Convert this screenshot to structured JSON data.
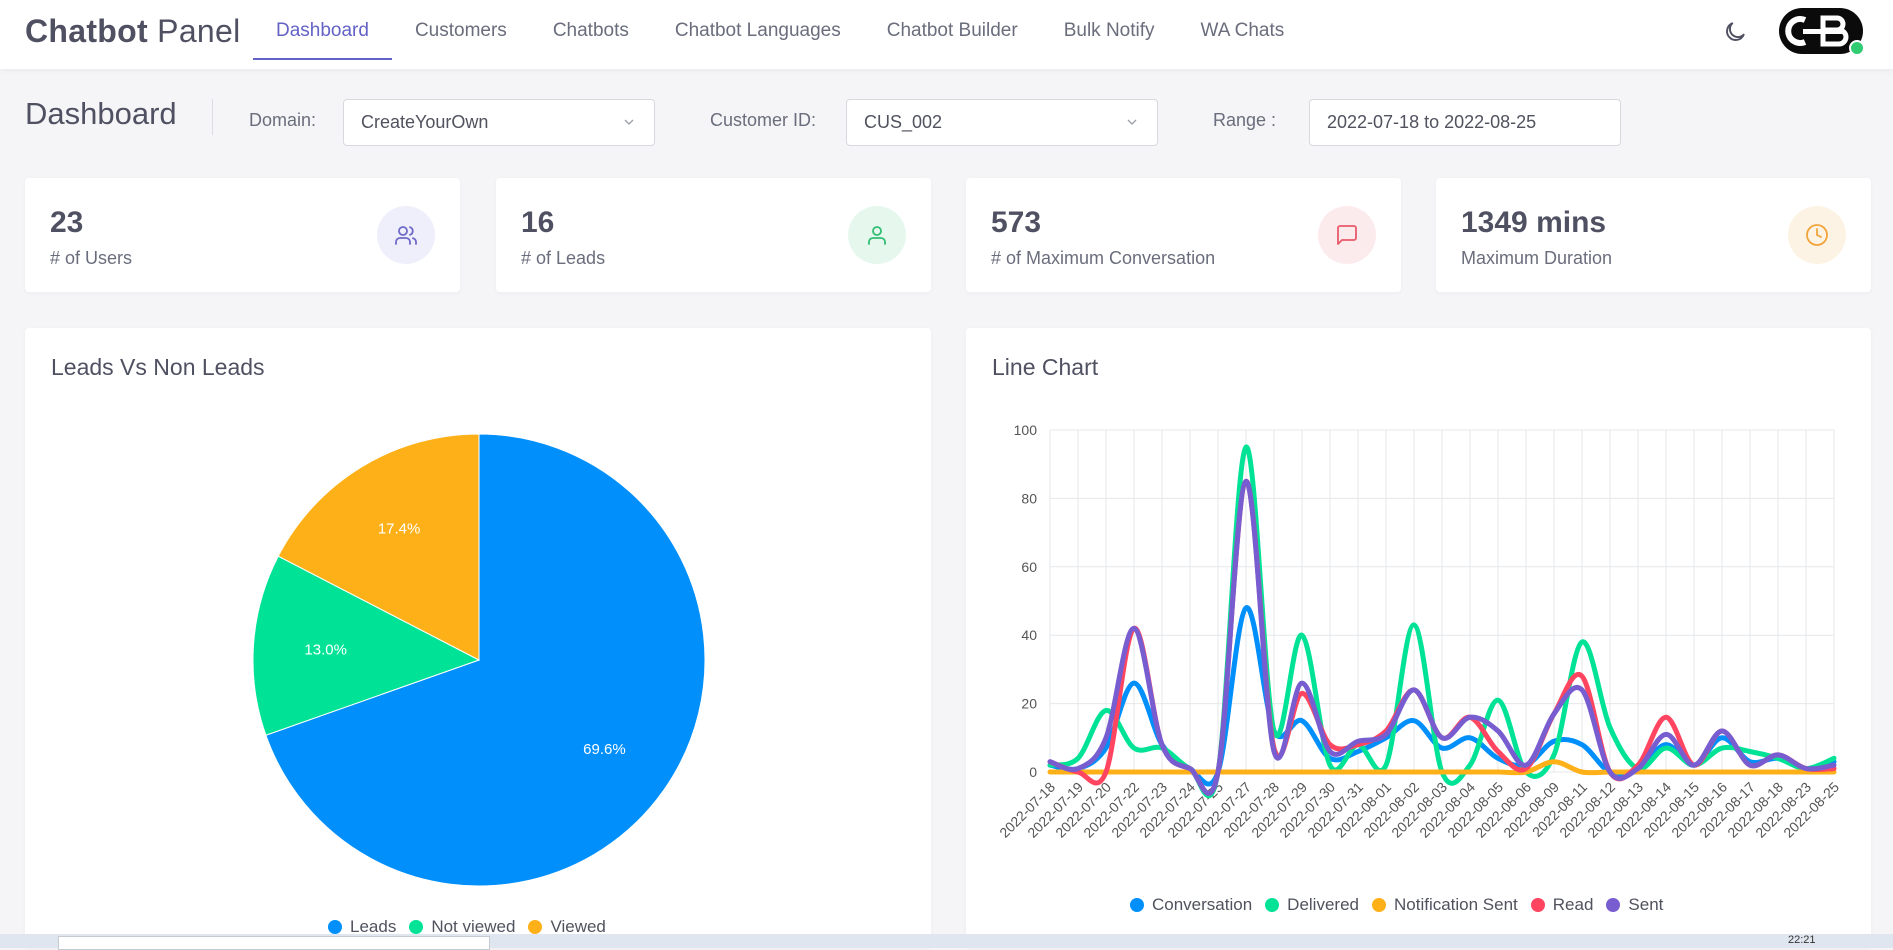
{
  "brand": {
    "bold": "Chatbot",
    "rest": "Panel"
  },
  "nav": [
    {
      "label": "Dashboard",
      "active": true
    },
    {
      "label": "Customers"
    },
    {
      "label": "Chatbots"
    },
    {
      "label": "Chatbot Languages"
    },
    {
      "label": "Chatbot Builder"
    },
    {
      "label": "Bulk Notify"
    },
    {
      "label": "WA Chats"
    }
  ],
  "header_icons": {
    "theme": "moon-icon",
    "avatar": "logo-avatar"
  },
  "page_title": "Dashboard",
  "filters": {
    "domain_label": "Domain:",
    "domain_value": "CreateYourOwn",
    "customer_label": "Customer ID:",
    "customer_value": "CUS_002",
    "range_label": "Range :",
    "range_value": "2022-07-18 to 2022-08-25"
  },
  "stats": [
    {
      "value": "23",
      "label": "# of Users",
      "icon": "users-icon",
      "color": "#6e68c8",
      "bg": "#efeefb"
    },
    {
      "value": "16",
      "label": "# of Leads",
      "icon": "user-icon",
      "color": "#2fbf71",
      "bg": "#e6f7ee"
    },
    {
      "value": "573",
      "label": "# of Maximum Conversation",
      "icon": "message-icon",
      "color": "#e85b6b",
      "bg": "#fcebed"
    },
    {
      "value": "1349 mins",
      "label": "Maximum Duration",
      "icon": "clock-icon",
      "color": "#f2a43a",
      "bg": "#fdf3e5"
    }
  ],
  "pie": {
    "title": "Leads Vs Non Leads",
    "chart_data": {
      "type": "pie",
      "labels": [
        "Leads",
        "Not viewed",
        "Viewed"
      ],
      "values": [
        69.6,
        13.0,
        17.4
      ],
      "value_labels": [
        "69.6%",
        "13.0%",
        "17.4%"
      ],
      "colors": [
        "#008ffb",
        "#00e396",
        "#feb019"
      ],
      "legend_position": "bottom"
    }
  },
  "line": {
    "title": "Line Chart",
    "chart_data": {
      "type": "line",
      "x": [
        "2022-07-18",
        "2022-07-19",
        "2022-07-20",
        "2022-07-22",
        "2022-07-23",
        "2022-07-24",
        "2022-07-25",
        "2022-07-27",
        "2022-07-28",
        "2022-07-29",
        "2022-07-30",
        "2022-07-31",
        "2022-08-01",
        "2022-08-02",
        "2022-08-03",
        "2022-08-04",
        "2022-08-05",
        "2022-08-06",
        "2022-08-09",
        "2022-08-11",
        "2022-08-12",
        "2022-08-13",
        "2022-08-14",
        "2022-08-15",
        "2022-08-16",
        "2022-08-17",
        "2022-08-18",
        "2022-08-23",
        "2022-08-25"
      ],
      "yticks": [
        "0",
        "20",
        "40",
        "60",
        "80",
        "100"
      ],
      "ylim": [
        0,
        100
      ],
      "grid": true,
      "legend_position": "bottom",
      "series": [
        {
          "name": "Conversation",
          "color": "#008ffb",
          "values": [
            2,
            1,
            7,
            26,
            8,
            1,
            0,
            48,
            12,
            15,
            4,
            6,
            10,
            15,
            7,
            10,
            4,
            2,
            9,
            8,
            0,
            1,
            8,
            2,
            10,
            3,
            4,
            1,
            3
          ]
        },
        {
          "name": "Delivered",
          "color": "#00e396",
          "values": [
            2,
            4,
            18,
            7,
            7,
            1,
            0,
            95,
            12,
            40,
            2,
            8,
            2,
            43,
            0,
            2,
            21,
            0,
            5,
            38,
            13,
            1,
            7,
            2,
            7,
            6,
            4,
            1,
            4
          ]
        },
        {
          "name": "Notification Sent",
          "color": "#feb019",
          "values": [
            0,
            0,
            0,
            0,
            0,
            0,
            0,
            0,
            0,
            0,
            0,
            0,
            0,
            0,
            0,
            0,
            0,
            0,
            3,
            0,
            0,
            0,
            0,
            0,
            0,
            0,
            0,
            0,
            0
          ]
        },
        {
          "name": "Read",
          "color": "#ff4560",
          "values": [
            3,
            0,
            0,
            42,
            8,
            1,
            0,
            85,
            7,
            23,
            8,
            8,
            12,
            24,
            10,
            16,
            6,
            1,
            17,
            28,
            0,
            2,
            16,
            2,
            12,
            2,
            5,
            1,
            1
          ]
        },
        {
          "name": "Sent",
          "color": "#775dd0",
          "values": [
            3,
            1,
            10,
            42,
            8,
            1,
            0,
            85,
            6,
            26,
            6,
            9,
            11,
            24,
            10,
            16,
            12,
            2,
            17,
            24,
            0,
            1,
            11,
            2,
            12,
            2,
            5,
            1,
            2
          ]
        }
      ]
    }
  },
  "taskbar": {
    "clock": "22:21"
  }
}
